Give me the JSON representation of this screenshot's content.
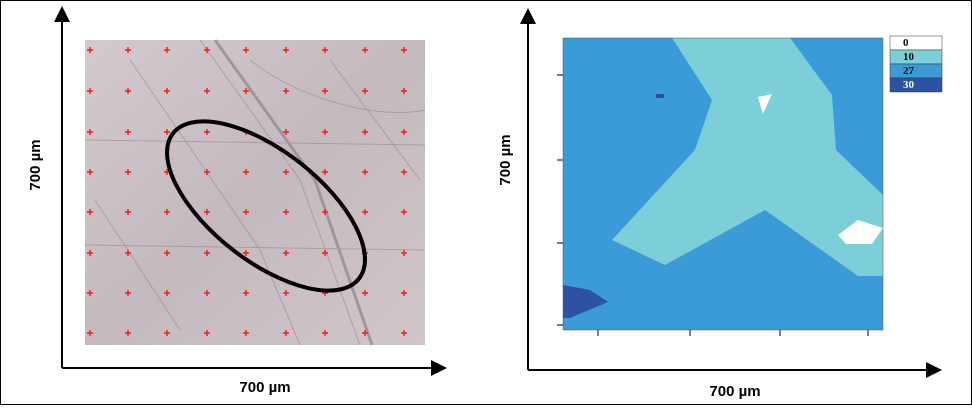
{
  "left_panel": {
    "y_label": "700 µm",
    "x_label": "700 µm"
  },
  "right_panel": {
    "y_label": "700 µm",
    "x_label": "700 µm",
    "legend": [
      {
        "label": 0,
        "color": "#ffffff"
      },
      {
        "label": 10,
        "color": "#7ccfd8"
      },
      {
        "label": 27,
        "color": "#3a9bd8"
      },
      {
        "label": 30,
        "color": "#2d52a3"
      }
    ]
  }
}
